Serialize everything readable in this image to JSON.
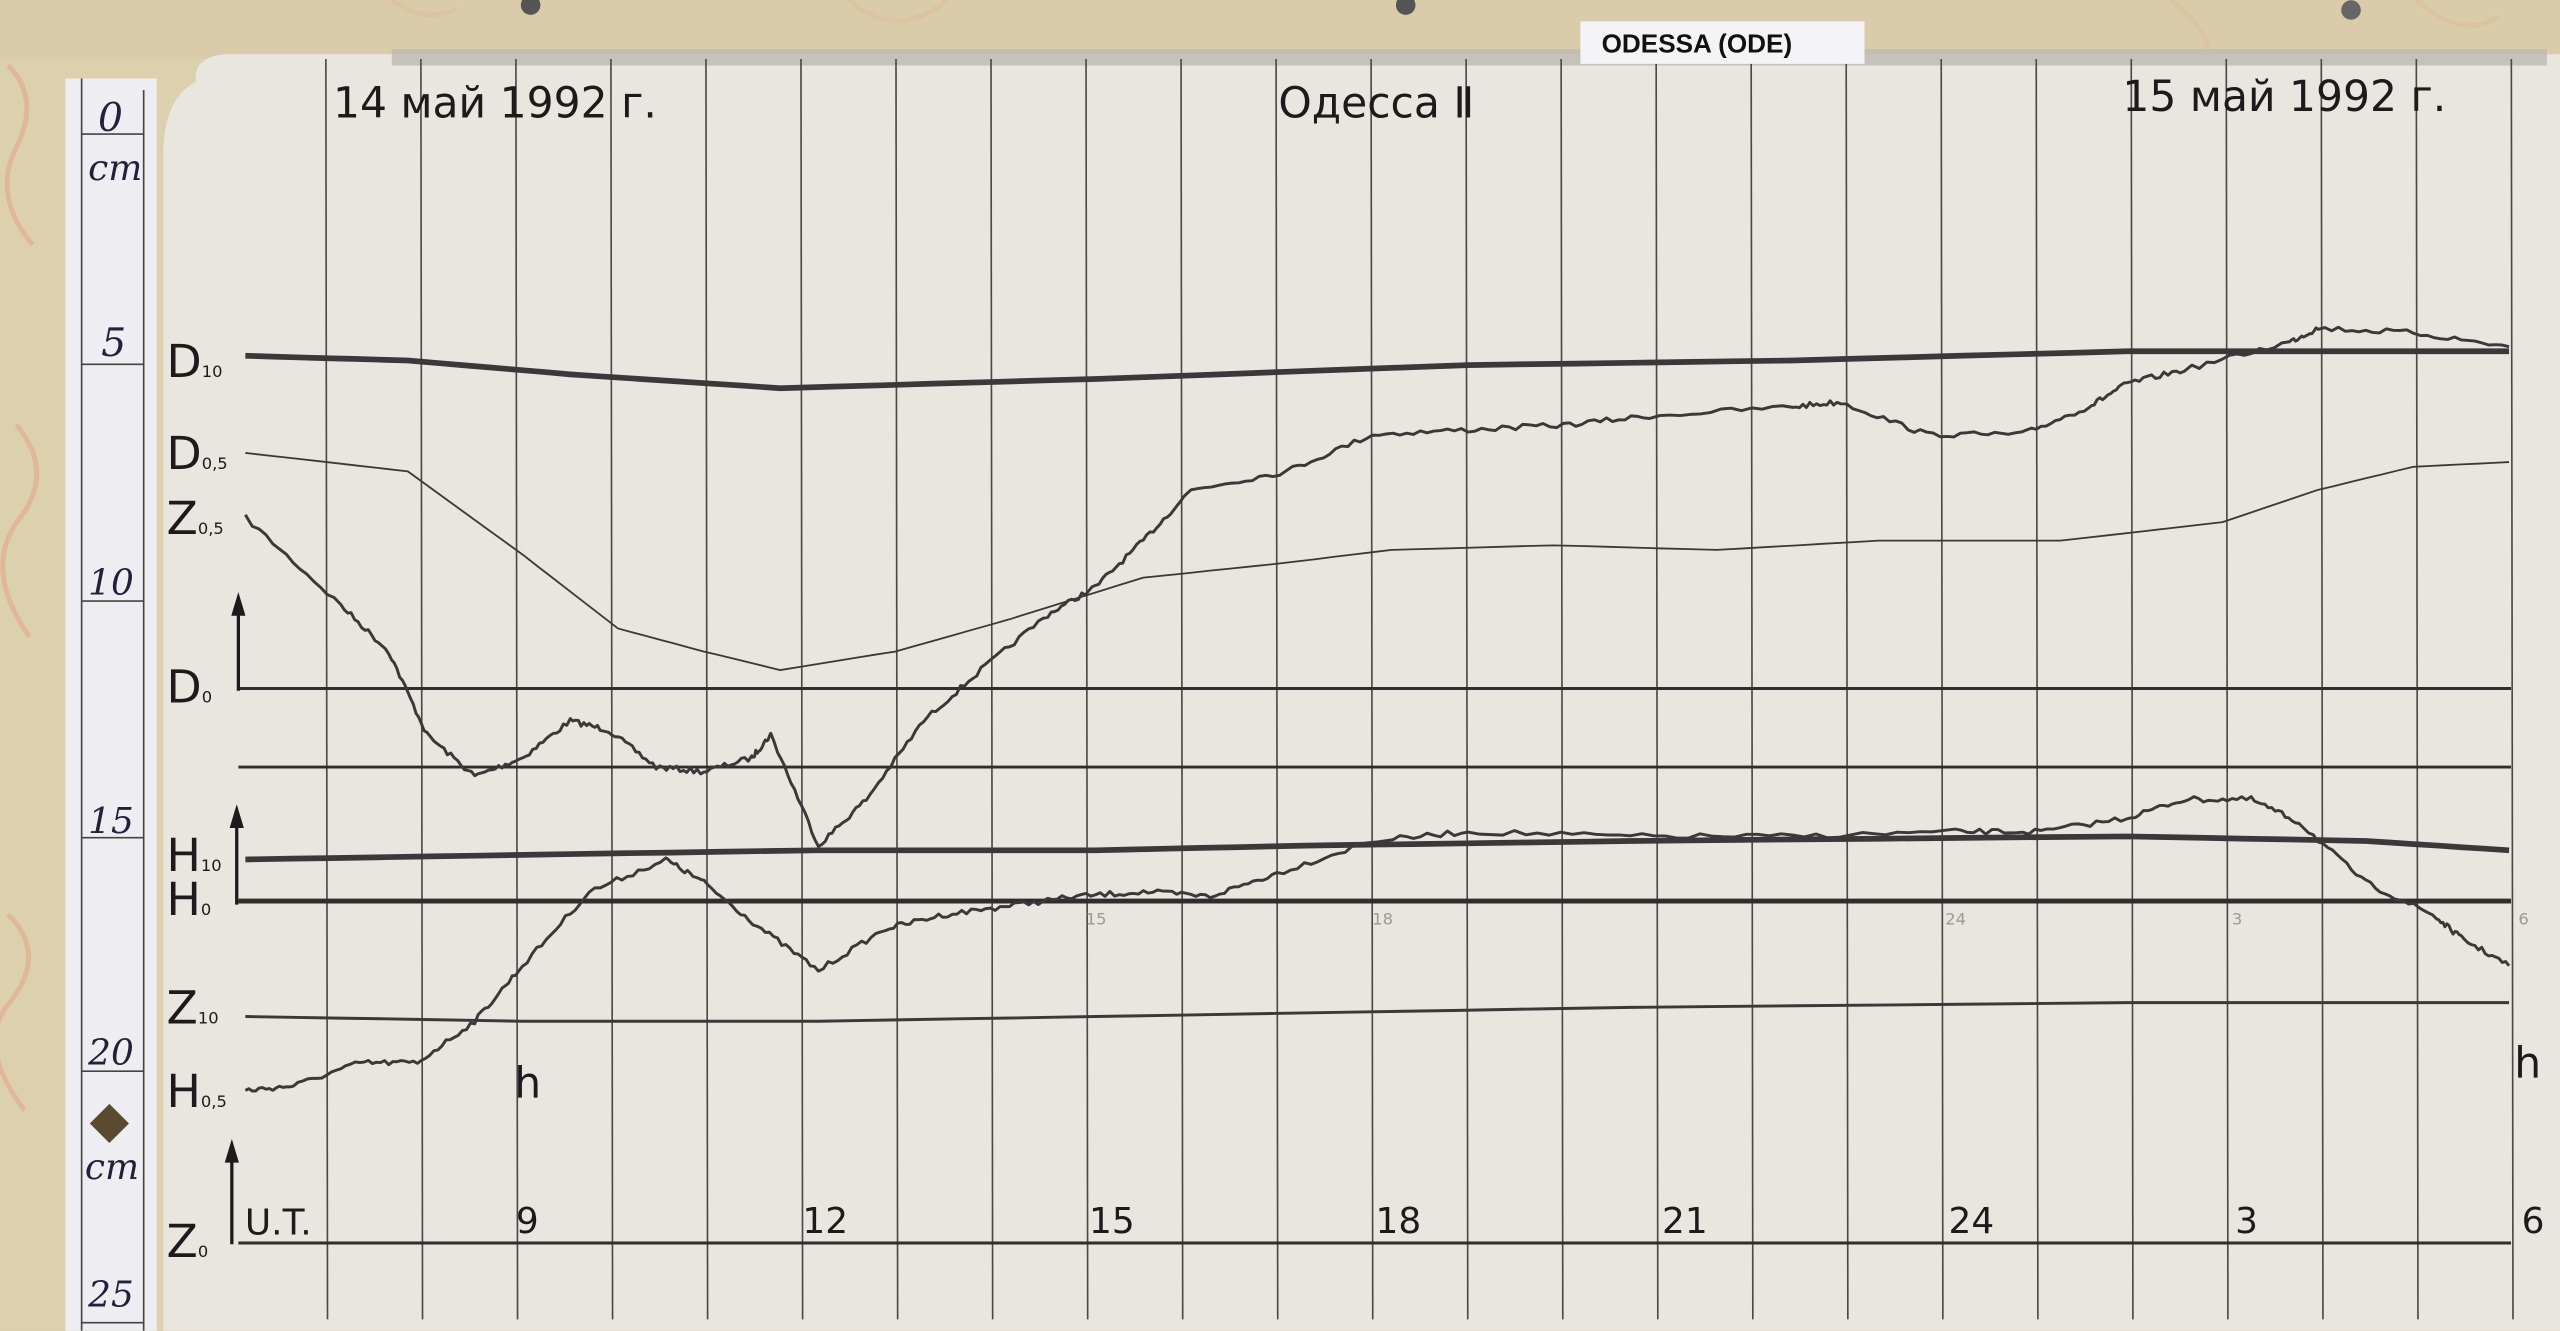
{
  "station_tag": "ODESSA (ODE)",
  "header": {
    "date_left": "14 май 1992 г.",
    "title": "Одесса Ⅱ",
    "date_right": "15 май 1992 г."
  },
  "ruler": {
    "unit_top": "cm",
    "unit_bottom": "cm",
    "ticks": [
      "0",
      "5",
      "10",
      "15",
      "20",
      "25"
    ]
  },
  "colors": {
    "paper": "#e9e5df",
    "trace": "#3a3838",
    "wall": "#ddd0ae",
    "ruler": "#eeeef2"
  },
  "chart_data": {
    "type": "line",
    "title": "Одесса Ⅱ",
    "xlabel": "U.T.",
    "x_unit_marks": [
      "h",
      "h"
    ],
    "y_unit": "cm",
    "xlim": [
      6,
      30
    ],
    "ylim": [
      0,
      25
    ],
    "grid": true,
    "x_tick_labels": [
      {
        "t": 9,
        "label": "9"
      },
      {
        "t": 12,
        "label": "12"
      },
      {
        "t": 15,
        "label": "15"
      },
      {
        "t": 18,
        "label": "18"
      },
      {
        "t": 21,
        "label": "21"
      },
      {
        "t": 24,
        "label": "24"
      },
      {
        "t": 27,
        "label": "3"
      },
      {
        "t": 30,
        "label": "6"
      }
    ],
    "faint_marks": [
      {
        "t": 15,
        "label": "15"
      },
      {
        "t": 18,
        "label": "18"
      },
      {
        "t": 24,
        "label": "24"
      },
      {
        "t": 27,
        "label": "3"
      },
      {
        "t": 30,
        "label": "6"
      }
    ],
    "baselines": [
      {
        "name": "D",
        "sub": "0",
        "y": 12.0,
        "thick": false
      },
      {
        "name": "",
        "sub": "",
        "y": 13.7,
        "thick": false
      },
      {
        "name": "H",
        "sub": "0",
        "y": 16.6,
        "thick": true
      },
      {
        "name": "Z",
        "sub": "0",
        "y": 24.0,
        "thick": false
      }
    ],
    "series": [
      {
        "name": "D",
        "sub": "10",
        "label_y": 4.9,
        "weight": "thick",
        "noisy": false,
        "x": [
          6.1,
          7.8,
          9.5,
          11.7,
          15.0,
          18.9,
          22.3,
          25.8,
          29.8
        ],
        "y": [
          4.8,
          4.9,
          5.2,
          5.5,
          5.3,
          5.0,
          4.9,
          4.7,
          4.7
        ]
      },
      {
        "name": "D",
        "sub": "0,5",
        "label_y": 6.9,
        "weight": "thin",
        "noisy": false,
        "x": [
          6.1,
          7.8,
          9.0,
          10.0,
          10.9,
          11.7,
          12.9,
          14.1,
          15.5,
          16.9,
          18.1,
          19.8,
          21.5,
          23.2,
          25.1,
          26.8,
          27.8,
          28.8,
          29.8
        ],
        "y": [
          6.9,
          7.3,
          9.1,
          10.7,
          11.2,
          11.6,
          11.2,
          10.5,
          9.6,
          9.3,
          9.0,
          8.9,
          9.0,
          8.8,
          8.8,
          8.4,
          7.7,
          7.2,
          7.1
        ]
      },
      {
        "name": "Z",
        "sub": "0,5",
        "label_y": 8.3,
        "weight": "medium",
        "noisy": true,
        "x": [
          6.1,
          7.1,
          7.6,
          8.0,
          8.5,
          9.0,
          9.5,
          9.9,
          10.4,
          10.9,
          11.4,
          11.6,
          12.1,
          12.6,
          13.2,
          13.8,
          14.5,
          15.0,
          15.5,
          16.0,
          17.0,
          17.9,
          18.9,
          19.9,
          20.8,
          22.3,
          22.8,
          23.7,
          24.7,
          25.4,
          25.8,
          26.4,
          27.5,
          27.8,
          28.8,
          29.8
        ],
        "y": [
          8.3,
          10.2,
          11.2,
          13.0,
          13.9,
          13.5,
          12.7,
          12.9,
          13.7,
          13.8,
          13.5,
          13.0,
          15.4,
          14.4,
          12.7,
          11.6,
          10.4,
          9.8,
          8.8,
          7.7,
          7.3,
          6.5,
          6.4,
          6.3,
          6.1,
          5.9,
          5.8,
          6.5,
          6.5,
          5.9,
          5.4,
          5.1,
          4.5,
          4.2,
          4.3,
          4.6
        ]
      },
      {
        "name": "H",
        "sub": "10",
        "label_y": 15.6,
        "weight": "thick",
        "noisy": false,
        "x": [
          6.1,
          9.0,
          12.1,
          15.0,
          17.2,
          20.6,
          25.8,
          28.3,
          29.8
        ],
        "y": [
          15.7,
          15.6,
          15.5,
          15.5,
          15.4,
          15.3,
          15.2,
          15.3,
          15.5
        ]
      },
      {
        "name": "Z",
        "sub": "10",
        "label_y": 18.9,
        "weight": "medium",
        "noisy": false,
        "x": [
          6.1,
          9.0,
          12.1,
          15.0,
          20.6,
          25.8,
          29.8
        ],
        "y": [
          19.1,
          19.2,
          19.2,
          19.1,
          18.9,
          18.8,
          18.8
        ]
      },
      {
        "name": "H",
        "sub": "0,5",
        "label_y": 20.7,
        "weight": "medium",
        "noisy": true,
        "x": [
          6.1,
          6.6,
          7.3,
          7.9,
          8.5,
          9.0,
          9.7,
          10.5,
          10.9,
          11.5,
          12.1,
          12.8,
          13.4,
          14.1,
          14.8,
          15.5,
          16.2,
          16.9,
          17.9,
          18.9,
          20.6,
          22.3,
          24.0,
          24.9,
          25.8,
          26.4,
          27.1,
          27.6,
          28.3,
          29.0,
          29.3,
          29.8
        ],
        "y": [
          20.7,
          20.6,
          20.1,
          20.1,
          19.2,
          18.0,
          16.4,
          15.7,
          16.2,
          17.2,
          18.1,
          17.2,
          16.9,
          16.7,
          16.5,
          16.4,
          16.5,
          16.0,
          15.3,
          15.1,
          15.2,
          15.2,
          15.1,
          15.1,
          14.8,
          14.4,
          14.4,
          14.9,
          16.2,
          16.9,
          17.4,
          18.0
        ]
      }
    ]
  }
}
